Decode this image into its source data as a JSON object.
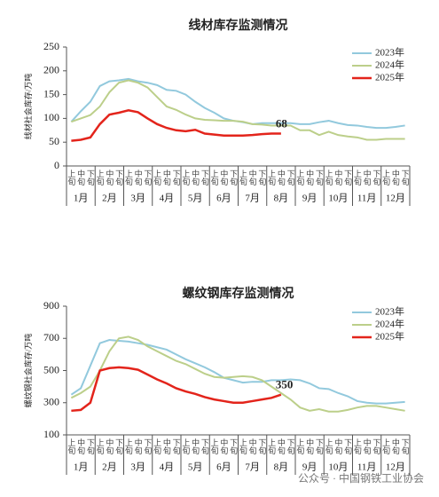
{
  "chart_data": [
    {
      "type": "line",
      "title": "线材库存监测情况",
      "y_label": "线材社会库存/万吨",
      "months": [
        "1月",
        "2月",
        "3月",
        "4月",
        "5月",
        "6月",
        "7月",
        "8月",
        "9月",
        "10月",
        "11月",
        "12月"
      ],
      "categories": [
        "上旬",
        "中旬",
        "下旬",
        "上旬",
        "中旬",
        "下旬",
        "上旬",
        "中旬",
        "下旬",
        "上旬",
        "中旬",
        "下旬",
        "上旬",
        "中旬",
        "下旬",
        "上旬",
        "中旬",
        "下旬",
        "上旬",
        "中旬",
        "下旬",
        "上旬",
        "中旬",
        "下旬",
        "上旬",
        "中旬",
        "下旬",
        "上旬",
        "中旬",
        "下旬",
        "上旬",
        "中旬",
        "下旬",
        "上旬",
        "中旬",
        "下旬"
      ],
      "ylim": [
        0,
        250
      ],
      "yticks": [
        0,
        50,
        100,
        150,
        200,
        250
      ],
      "legend": "upper right",
      "series": [
        {
          "name": "2023年",
          "color": "#92c9dd",
          "values": [
            93,
            115,
            135,
            168,
            178,
            180,
            183,
            178,
            175,
            170,
            160,
            158,
            150,
            135,
            122,
            112,
            100,
            95,
            92,
            88,
            90,
            90,
            90,
            90,
            88,
            88,
            92,
            95,
            90,
            86,
            85,
            82,
            80,
            80,
            82,
            85
          ]
        },
        {
          "name": "2024年",
          "color": "#bccf8a",
          "values": [
            93,
            100,
            107,
            125,
            155,
            175,
            180,
            175,
            165,
            145,
            125,
            118,
            108,
            100,
            97,
            96,
            95,
            95,
            93,
            88,
            87,
            85,
            85,
            85,
            75,
            75,
            65,
            72,
            65,
            62,
            60,
            55,
            55,
            57,
            57,
            57
          ]
        },
        {
          "name": "2025年",
          "color": "#e3241b",
          "values": [
            53,
            55,
            60,
            88,
            108,
            112,
            117,
            113,
            100,
            88,
            80,
            75,
            73,
            76,
            68,
            66,
            64,
            64,
            64,
            65,
            67,
            68,
            68,
            null,
            null,
            null,
            null,
            null,
            null,
            null,
            null,
            null,
            null,
            null,
            null,
            null
          ],
          "label_index": 22
        }
      ]
    },
    {
      "type": "line",
      "title": "螺纹钢库存监测情况",
      "y_label": "螺纹钢社会库存/万吨",
      "months": [
        "1月",
        "2月",
        "3月",
        "4月",
        "5月",
        "6月",
        "7月",
        "8月",
        "9月",
        "10月",
        "11月",
        "12月"
      ],
      "categories": [
        "上旬",
        "中旬",
        "下旬",
        "上旬",
        "中旬",
        "下旬",
        "上旬",
        "中旬",
        "下旬",
        "上旬",
        "中旬",
        "下旬",
        "上旬",
        "中旬",
        "下旬",
        "上旬",
        "中旬",
        "下旬",
        "上旬",
        "中旬",
        "下旬",
        "上旬",
        "中旬",
        "下旬",
        "上旬",
        "中旬",
        "下旬",
        "上旬",
        "中旬",
        "下旬",
        "上旬",
        "中旬",
        "下旬",
        "上旬",
        "中旬",
        "下旬"
      ],
      "ylim": [
        100,
        900
      ],
      "yticks": [
        100,
        300,
        500,
        700,
        900
      ],
      "legend": "upper right",
      "series": [
        {
          "name": "2023年",
          "color": "#92c9dd",
          "values": [
            350,
            390,
            530,
            670,
            690,
            685,
            680,
            670,
            660,
            645,
            630,
            600,
            570,
            545,
            520,
            490,
            455,
            440,
            425,
            430,
            430,
            440,
            440,
            445,
            440,
            420,
            390,
            385,
            360,
            340,
            310,
            300,
            295,
            295,
            300,
            305
          ]
        },
        {
          "name": "2024年",
          "color": "#bccf8a",
          "values": [
            330,
            360,
            400,
            500,
            620,
            700,
            710,
            690,
            650,
            620,
            590,
            560,
            540,
            510,
            480,
            460,
            455,
            460,
            465,
            460,
            440,
            400,
            360,
            320,
            270,
            250,
            260,
            245,
            245,
            255,
            270,
            280,
            280,
            270,
            260,
            250
          ]
        },
        {
          "name": "2025年",
          "color": "#e3241b",
          "values": [
            250,
            255,
            300,
            500,
            515,
            520,
            515,
            505,
            475,
            445,
            420,
            390,
            370,
            355,
            335,
            320,
            310,
            300,
            300,
            310,
            320,
            330,
            350,
            null,
            null,
            null,
            null,
            null,
            null,
            null,
            null,
            null,
            null,
            null,
            null,
            null
          ],
          "label_index": 22
        }
      ]
    }
  ],
  "watermark": "公众号 · 中国钢铁工业协会"
}
